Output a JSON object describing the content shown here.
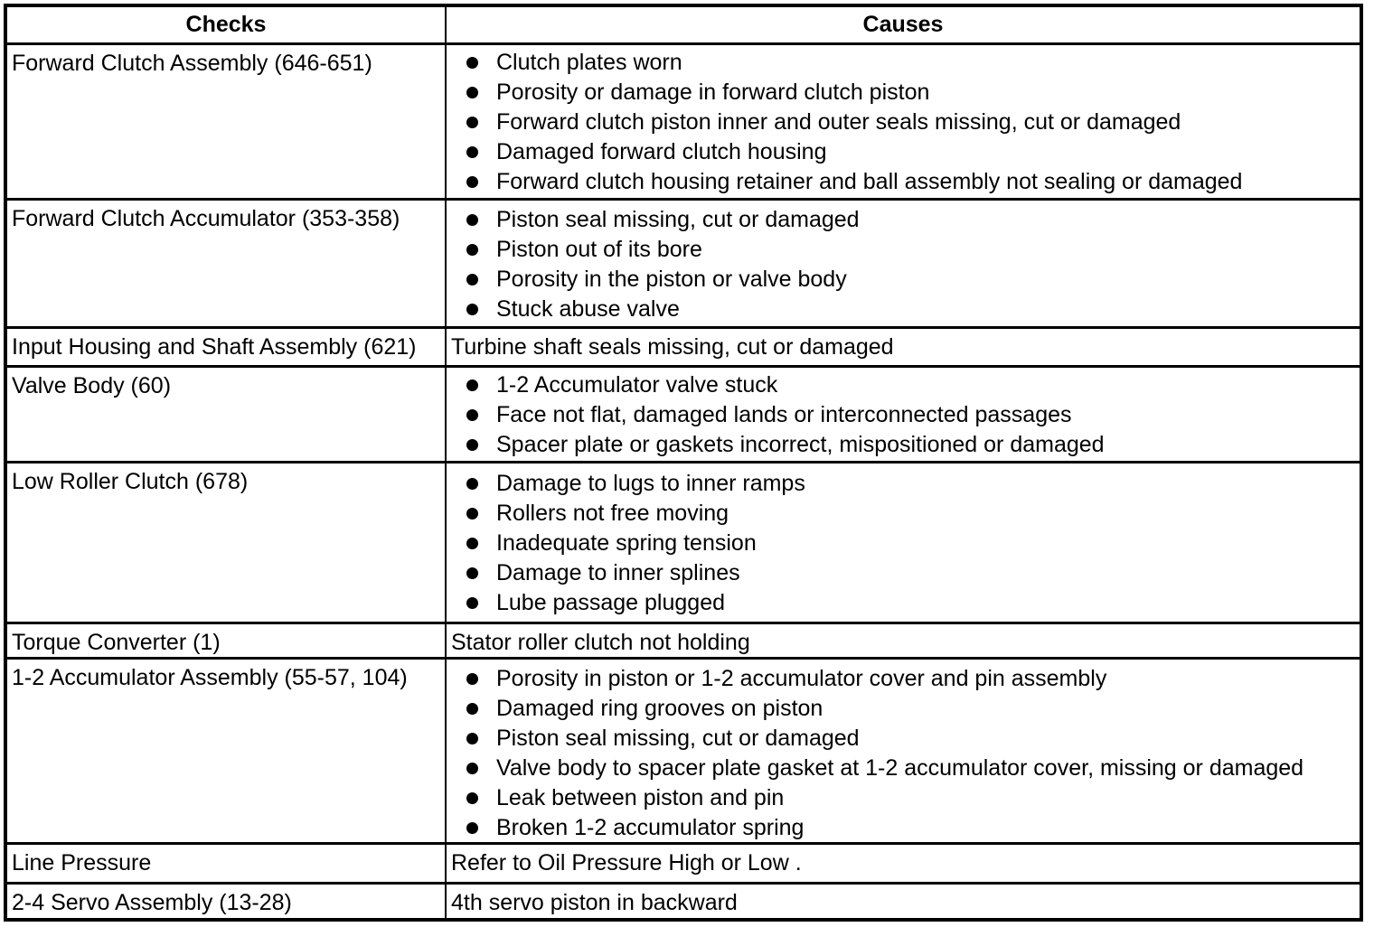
{
  "page": {
    "background": "#ffffff"
  },
  "table": {
    "border_color": "#000000",
    "text_color": "#000000",
    "bullet_icon": "filled-circle",
    "headers": {
      "checks": "Checks",
      "causes": "Causes"
    },
    "rows": [
      {
        "check": "Forward Clutch Assembly (646-651)",
        "bulleted": true,
        "causes": [
          "Clutch plates worn",
          "Porosity or damage in forward clutch piston",
          "Forward clutch piston inner and outer seals missing, cut or damaged",
          "Damaged forward clutch housing",
          "Forward clutch housing retainer and ball assembly not sealing or damaged"
        ]
      },
      {
        "check": "Forward Clutch Accumulator (353-358)",
        "bulleted": true,
        "causes": [
          "Piston seal missing, cut or damaged",
          "Piston out of its bore",
          "Porosity in the piston or valve body",
          "Stuck abuse valve"
        ]
      },
      {
        "check": "Input Housing and Shaft Assembly (621)",
        "bulleted": false,
        "causes": [
          "Turbine shaft seals missing, cut or damaged"
        ]
      },
      {
        "check": "Valve Body (60)",
        "bulleted": true,
        "causes": [
          "1-2 Accumulator valve stuck",
          "Face not flat, damaged lands or interconnected passages",
          "Spacer plate or gaskets incorrect, mispositioned or damaged"
        ]
      },
      {
        "check": "Low Roller Clutch (678)",
        "bulleted": true,
        "causes": [
          "Damage to lugs to inner ramps",
          "Rollers not free moving",
          "Inadequate spring tension",
          "Damage to inner splines",
          "Lube passage plugged"
        ]
      },
      {
        "check": "Torque Converter (1)",
        "bulleted": false,
        "causes": [
          "Stator roller clutch not holding"
        ]
      },
      {
        "check": "1-2 Accumulator Assembly (55-57, 104)",
        "bulleted": true,
        "causes": [
          "Porosity in piston or 1-2 accumulator cover and pin assembly",
          "Damaged ring grooves on piston",
          "Piston seal missing, cut or damaged",
          "Valve body to spacer plate gasket at 1-2 accumulator cover, missing or damaged",
          "Leak between piston and pin",
          "Broken 1-2 accumulator spring"
        ]
      },
      {
        "check": "Line Pressure",
        "bulleted": false,
        "causes": [
          "Refer to Oil Pressure High or Low ."
        ]
      },
      {
        "check": "2-4 Servo Assembly (13-28)",
        "bulleted": false,
        "causes": [
          "4th servo piston in backward"
        ]
      }
    ]
  }
}
